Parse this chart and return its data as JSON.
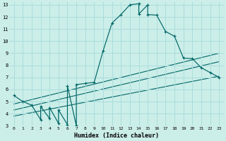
{
  "title": "",
  "xlabel": "Humidex (Indice chaleur)",
  "bg_color": "#cceee8",
  "grid_color": "#aadddd",
  "line_color": "#006666",
  "xlim": [
    -0.5,
    23.5
  ],
  "ylim": [
    3,
    13.2
  ],
  "xticks": [
    0,
    1,
    2,
    3,
    4,
    5,
    6,
    7,
    8,
    9,
    10,
    11,
    12,
    13,
    14,
    15,
    16,
    17,
    18,
    19,
    20,
    21,
    22,
    23
  ],
  "yticks": [
    3,
    4,
    5,
    6,
    7,
    8,
    9,
    10,
    11,
    12,
    13
  ],
  "main_curve_x": [
    0,
    1,
    2,
    3,
    3,
    4,
    4,
    5,
    5,
    6,
    6,
    7,
    7,
    8,
    9,
    10,
    11,
    12,
    13,
    14,
    14,
    15,
    15,
    16,
    17,
    18,
    19,
    20,
    21,
    22,
    23
  ],
  "main_curve_y": [
    5.5,
    5.0,
    4.7,
    3.5,
    4.6,
    3.6,
    4.5,
    3.2,
    4.3,
    3.1,
    6.3,
    3.0,
    6.4,
    6.5,
    6.6,
    9.2,
    11.5,
    12.2,
    13.0,
    13.1,
    12.25,
    13.0,
    12.2,
    12.15,
    10.8,
    10.4,
    8.6,
    8.55,
    7.8,
    7.4,
    7.0
  ],
  "trend_line1_x": [
    0,
    23
  ],
  "trend_line1_y": [
    4.8,
    9.0
  ],
  "trend_line2_x": [
    0,
    23
  ],
  "trend_line2_y": [
    4.3,
    8.3
  ],
  "trend_line3_x": [
    0,
    23
  ],
  "trend_line3_y": [
    3.8,
    7.1
  ]
}
